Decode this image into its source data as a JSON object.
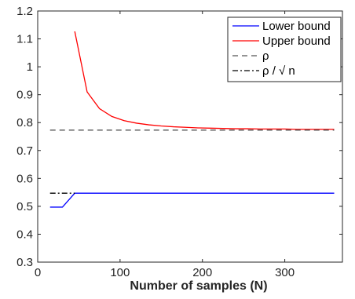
{
  "chart_data": {
    "type": "line",
    "title": "",
    "xlabel": "Number of samples (N)",
    "ylabel": "",
    "xlim": [
      0,
      370
    ],
    "ylim": [
      0.3,
      1.2
    ],
    "xticks": [
      0,
      100,
      200,
      300
    ],
    "xtick_labels": [
      "0",
      "100",
      "200",
      "300"
    ],
    "yticks": [
      0.3,
      0.4,
      0.5,
      0.6,
      0.7,
      0.8,
      0.9,
      1.0,
      1.1,
      1.2
    ],
    "ytick_labels": [
      "0.3",
      "0.4",
      "0.5",
      "0.6",
      "0.7",
      "0.8",
      "0.9",
      "1",
      "1.1",
      "1.2"
    ],
    "grid": false,
    "legend_position": "top-right",
    "series": [
      {
        "name": "Lower bound",
        "color": "#0000ff",
        "style": "solid",
        "x": [
          15,
          30,
          45,
          60,
          75,
          90,
          105,
          120,
          135,
          150,
          165,
          180,
          195,
          210,
          225,
          240,
          255,
          270,
          285,
          300,
          315,
          330,
          345,
          360
        ],
        "y": [
          0.497,
          0.497,
          0.547,
          0.547,
          0.547,
          0.547,
          0.547,
          0.547,
          0.547,
          0.547,
          0.547,
          0.547,
          0.547,
          0.547,
          0.547,
          0.547,
          0.547,
          0.547,
          0.547,
          0.547,
          0.547,
          0.547,
          0.547,
          0.547
        ]
      },
      {
        "name": "Upper bound",
        "color": "#ff0000",
        "style": "solid",
        "x": [
          45,
          60,
          75,
          90,
          105,
          120,
          135,
          150,
          165,
          180,
          195,
          210,
          225,
          240,
          255,
          270,
          285,
          300,
          315,
          330,
          345,
          360
        ],
        "y": [
          1.127,
          0.91,
          0.85,
          0.822,
          0.807,
          0.798,
          0.792,
          0.788,
          0.785,
          0.783,
          0.781,
          0.78,
          0.779,
          0.778,
          0.778,
          0.777,
          0.777,
          0.777,
          0.776,
          0.776,
          0.776,
          0.776
        ]
      },
      {
        "name": "ρ",
        "color": "#555555",
        "style": "dashed",
        "x": [
          15,
          360
        ],
        "y": [
          0.773,
          0.773
        ]
      },
      {
        "name": "ρ / √ n",
        "color": "#000000",
        "style": "dashdot",
        "x": [
          15,
          45
        ],
        "y": [
          0.547,
          0.547
        ]
      }
    ]
  }
}
